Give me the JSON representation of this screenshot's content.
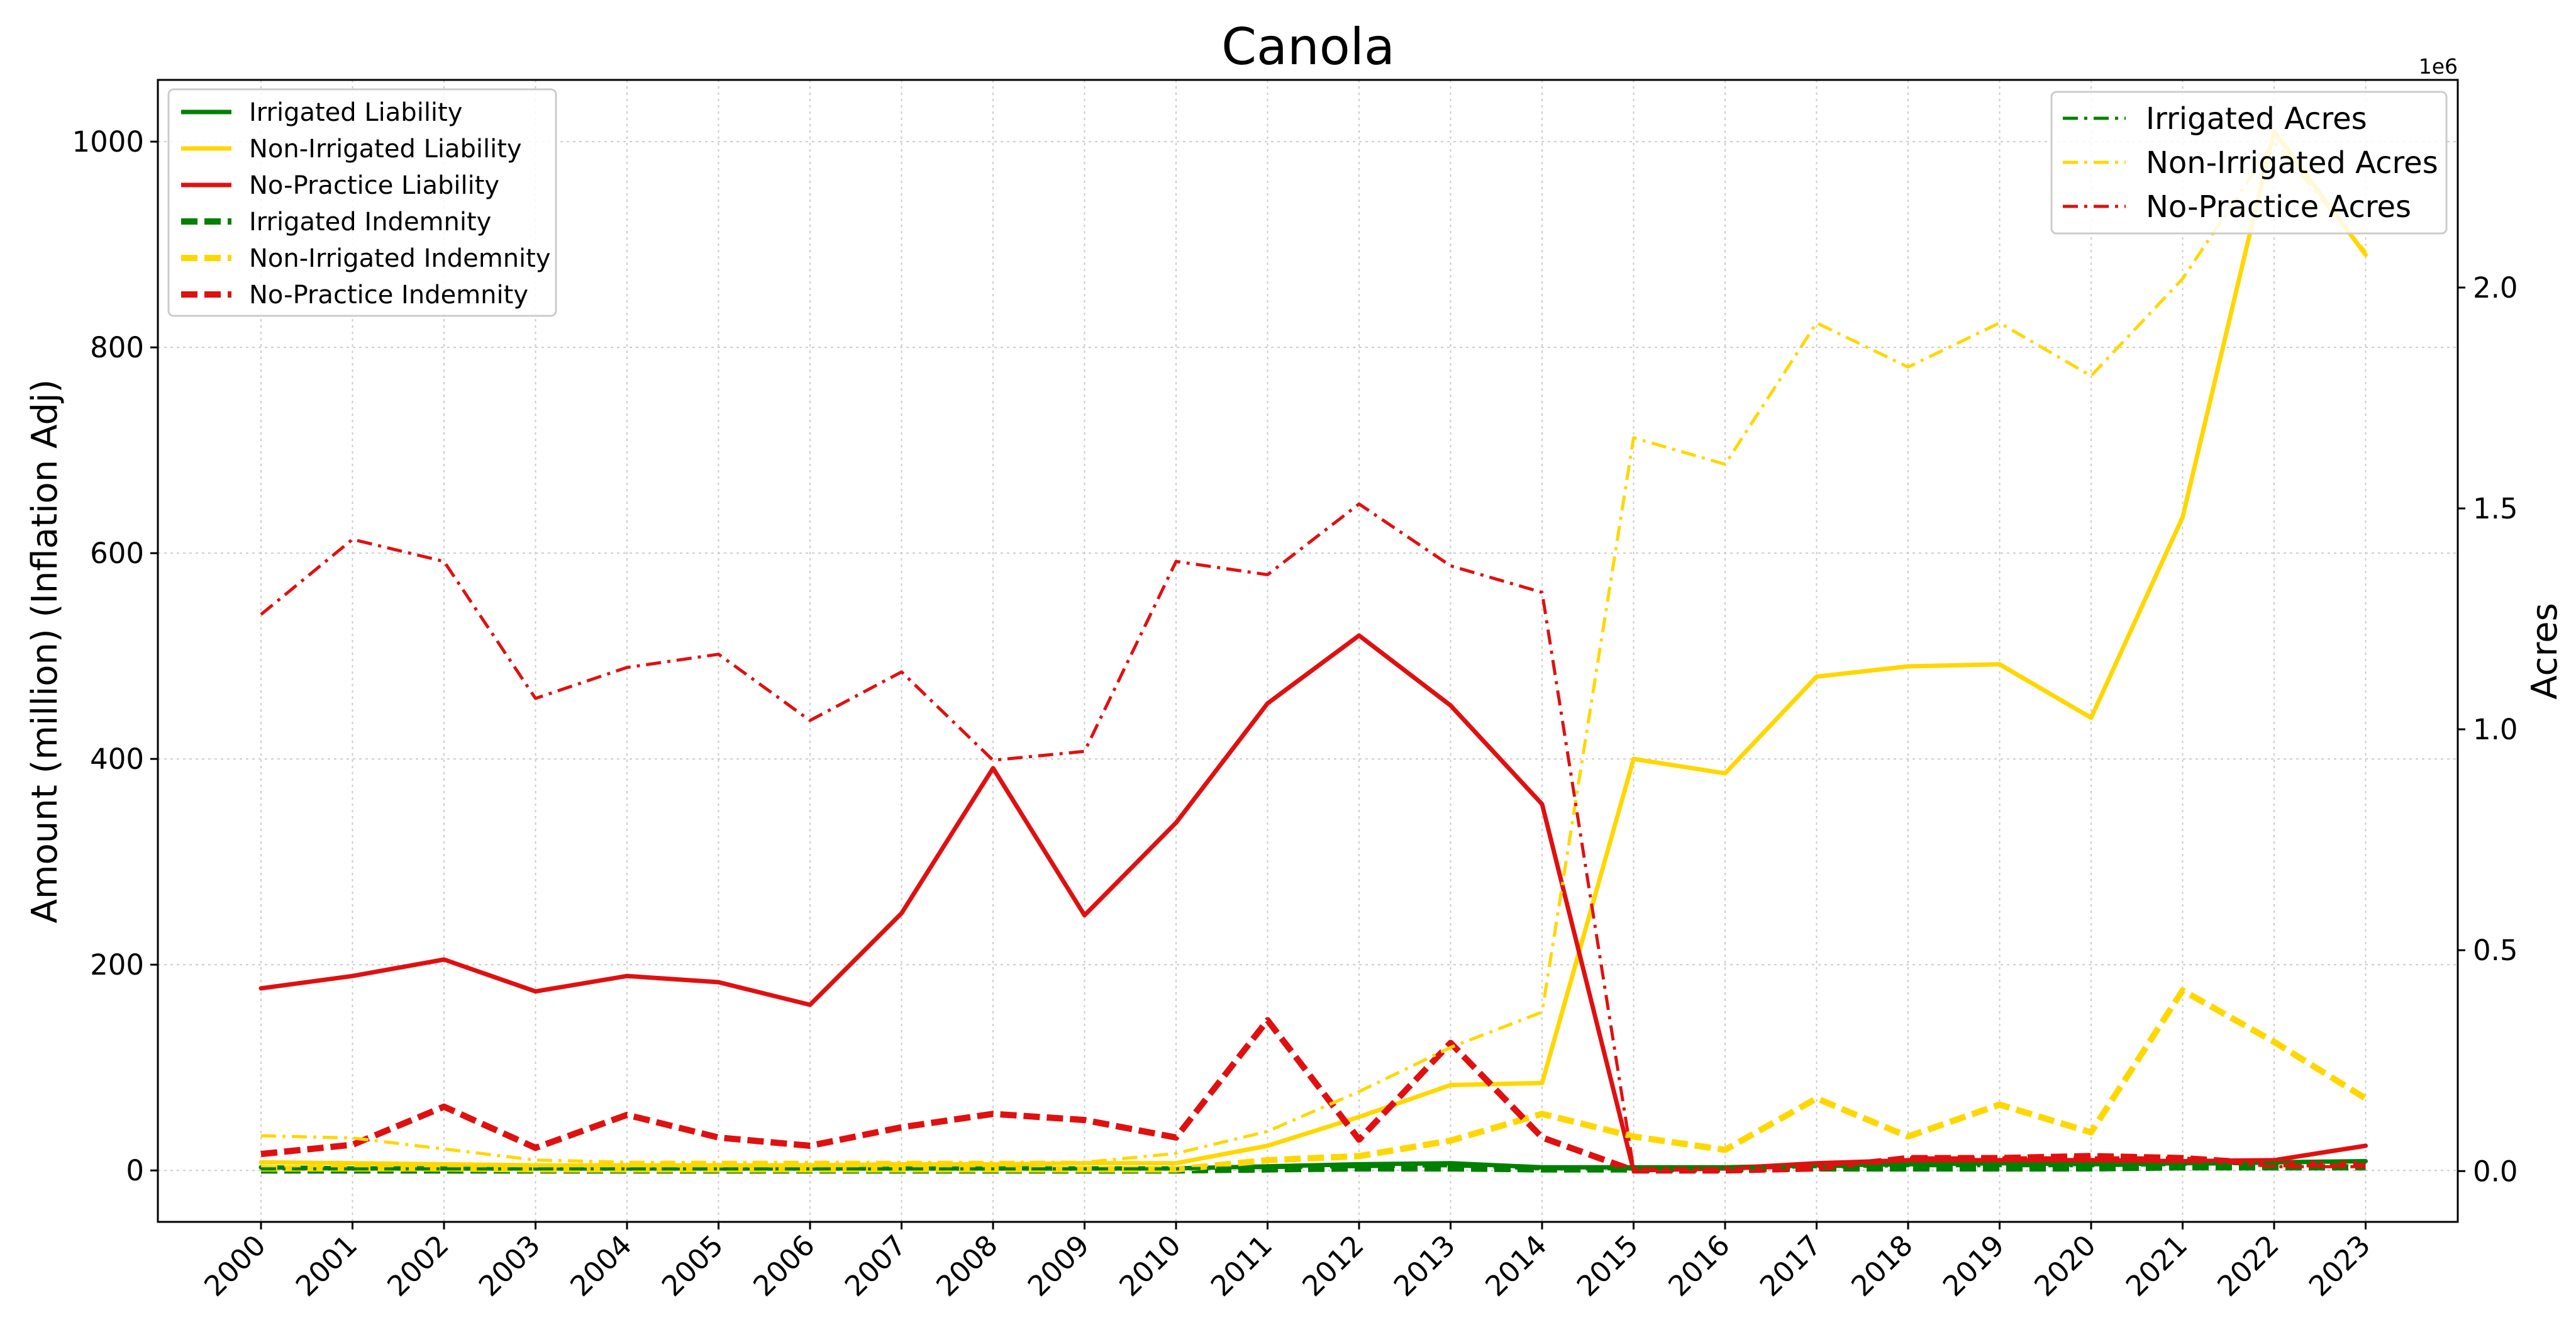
{
  "chart_data": {
    "type": "line",
    "title": "Canola",
    "xlabel": "",
    "ylabel_left": "Amount (million) (Inflation Adj)",
    "ylabel_right": "Acres",
    "right_axis_multiplier": "1e6",
    "categories": [
      "2000",
      "2001",
      "2002",
      "2003",
      "2004",
      "2005",
      "2006",
      "2007",
      "2008",
      "2009",
      "2010",
      "2011",
      "2012",
      "2013",
      "2014",
      "2015",
      "2016",
      "2017",
      "2018",
      "2019",
      "2020",
      "2021",
      "2022",
      "2023"
    ],
    "ylim_left": [
      -50,
      1060
    ],
    "ylim_right": [
      -0.115,
      2.47
    ],
    "yticks_left": [
      0,
      200,
      400,
      600,
      800,
      1000
    ],
    "yticks_right": [
      0.0,
      0.5,
      1.0,
      1.5,
      2.0
    ],
    "ytick_labels_left": [
      "0",
      "200",
      "400",
      "600",
      "800",
      "1000"
    ],
    "ytick_labels_right": [
      "0.0",
      "0.5",
      "1.0",
      "1.5",
      "2.0"
    ],
    "grid": true,
    "legend_left_position": "upper-left",
    "legend_right_position": "upper-right",
    "colors": {
      "irrigated": "#008000",
      "non_irrigated": "#FFD700",
      "no_practice": "#E01010"
    },
    "series": [
      {
        "name": "Irrigated Liability",
        "axis": "left",
        "color": "#008000",
        "style": "solid",
        "values": [
          3,
          2,
          2,
          2,
          2,
          2,
          2,
          2,
          2,
          2,
          2,
          4,
          6,
          7,
          3,
          3,
          3,
          5,
          6,
          7,
          6,
          7,
          8,
          9
        ]
      },
      {
        "name": "Non-Irrigated Liability",
        "axis": "left",
        "color": "#FFD700",
        "style": "solid",
        "values": [
          8,
          7,
          6,
          5,
          5,
          5,
          5,
          6,
          6,
          7,
          7,
          24,
          52,
          83,
          85,
          400,
          386,
          480,
          490,
          492,
          440,
          635,
          1010,
          890
        ]
      },
      {
        "name": "No-Practice Liability",
        "axis": "left",
        "color": "#E01010",
        "style": "solid",
        "values": [
          177,
          189,
          205,
          174,
          189,
          183,
          161,
          250,
          391,
          248,
          338,
          454,
          520,
          452,
          356,
          0,
          2,
          7,
          10,
          10,
          10,
          9,
          10,
          24
        ]
      },
      {
        "name": "Irrigated Indemnity",
        "axis": "left",
        "color": "#008000",
        "style": "dashed",
        "values": [
          0,
          0,
          0,
          0,
          0,
          0,
          0,
          0,
          0,
          0,
          0,
          1,
          2,
          2,
          1,
          1,
          1,
          2,
          2,
          2,
          2,
          3,
          3,
          3
        ]
      },
      {
        "name": "Non-Irrigated Indemnity",
        "axis": "left",
        "color": "#FFD700",
        "style": "dashed",
        "values": [
          2,
          2,
          2,
          1,
          1,
          1,
          1,
          1,
          1,
          1,
          1,
          10,
          14,
          29,
          55,
          33,
          20,
          70,
          33,
          64,
          37,
          175,
          125,
          70
        ]
      },
      {
        "name": "No-Practice Indemnity",
        "axis": "left",
        "color": "#E01010",
        "style": "dashed",
        "values": [
          16,
          25,
          62,
          22,
          54,
          32,
          24,
          42,
          55,
          49,
          32,
          146,
          30,
          124,
          32,
          0,
          0,
          2,
          12,
          12,
          14,
          12,
          6,
          6
        ]
      },
      {
        "name": "Irrigated Acres",
        "axis": "right",
        "color": "#008000",
        "style": "dashdot",
        "values": [
          0.005,
          0.005,
          0.005,
          0.005,
          0.005,
          0.005,
          0.005,
          0.005,
          0.005,
          0.005,
          0.005,
          0.008,
          0.01,
          0.012,
          0.005,
          0.005,
          0.006,
          0.01,
          0.012,
          0.012,
          0.012,
          0.015,
          0.018,
          0.022
        ]
      },
      {
        "name": "Non-Irrigated Acres",
        "axis": "right",
        "color": "#FFD700",
        "style": "dashdot",
        "values": [
          0.08,
          0.075,
          0.05,
          0.025,
          0.02,
          0.02,
          0.02,
          0.02,
          0.02,
          0.02,
          0.04,
          0.09,
          0.18,
          0.28,
          0.36,
          1.66,
          1.6,
          1.92,
          1.82,
          1.92,
          1.8,
          2.02,
          2.33,
          2.08
        ]
      },
      {
        "name": "No-Practice Acres",
        "axis": "right",
        "color": "#E01010",
        "style": "dashdot",
        "values": [
          1.26,
          1.43,
          1.38,
          1.07,
          1.14,
          1.17,
          1.02,
          1.13,
          0.93,
          0.95,
          1.38,
          1.35,
          1.51,
          1.37,
          1.31,
          0.005,
          0.005,
          0.01,
          0.03,
          0.03,
          0.03,
          0.03,
          0.01,
          0.01
        ]
      }
    ],
    "legend_left": [
      "Irrigated Liability",
      "Non-Irrigated Liability",
      "No-Practice Liability",
      "Irrigated Indemnity",
      "Non-Irrigated Indemnity",
      "No-Practice Indemnity"
    ],
    "legend_right": [
      "Irrigated Acres",
      "Non-Irrigated Acres",
      "No-Practice Acres"
    ]
  }
}
